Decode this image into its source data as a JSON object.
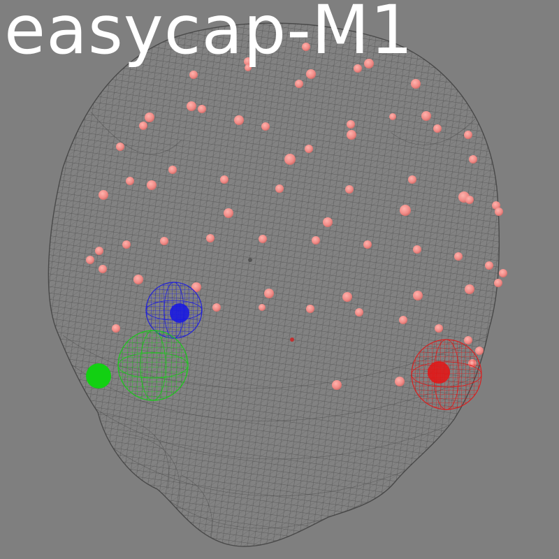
{
  "title": "easycap-M1",
  "colors": {
    "background": "#7f7f7f",
    "head_mesh": "#3c3c3c",
    "electrode": "#f08a86",
    "nasion_fiducial": "#1a1ae0",
    "lpa_fiducial": "#12d012",
    "rpa_fiducial": "#e01818"
  },
  "scene": {
    "head_surface": "head-mesh",
    "fiducials": [
      "nasion",
      "lpa",
      "rpa"
    ]
  }
}
